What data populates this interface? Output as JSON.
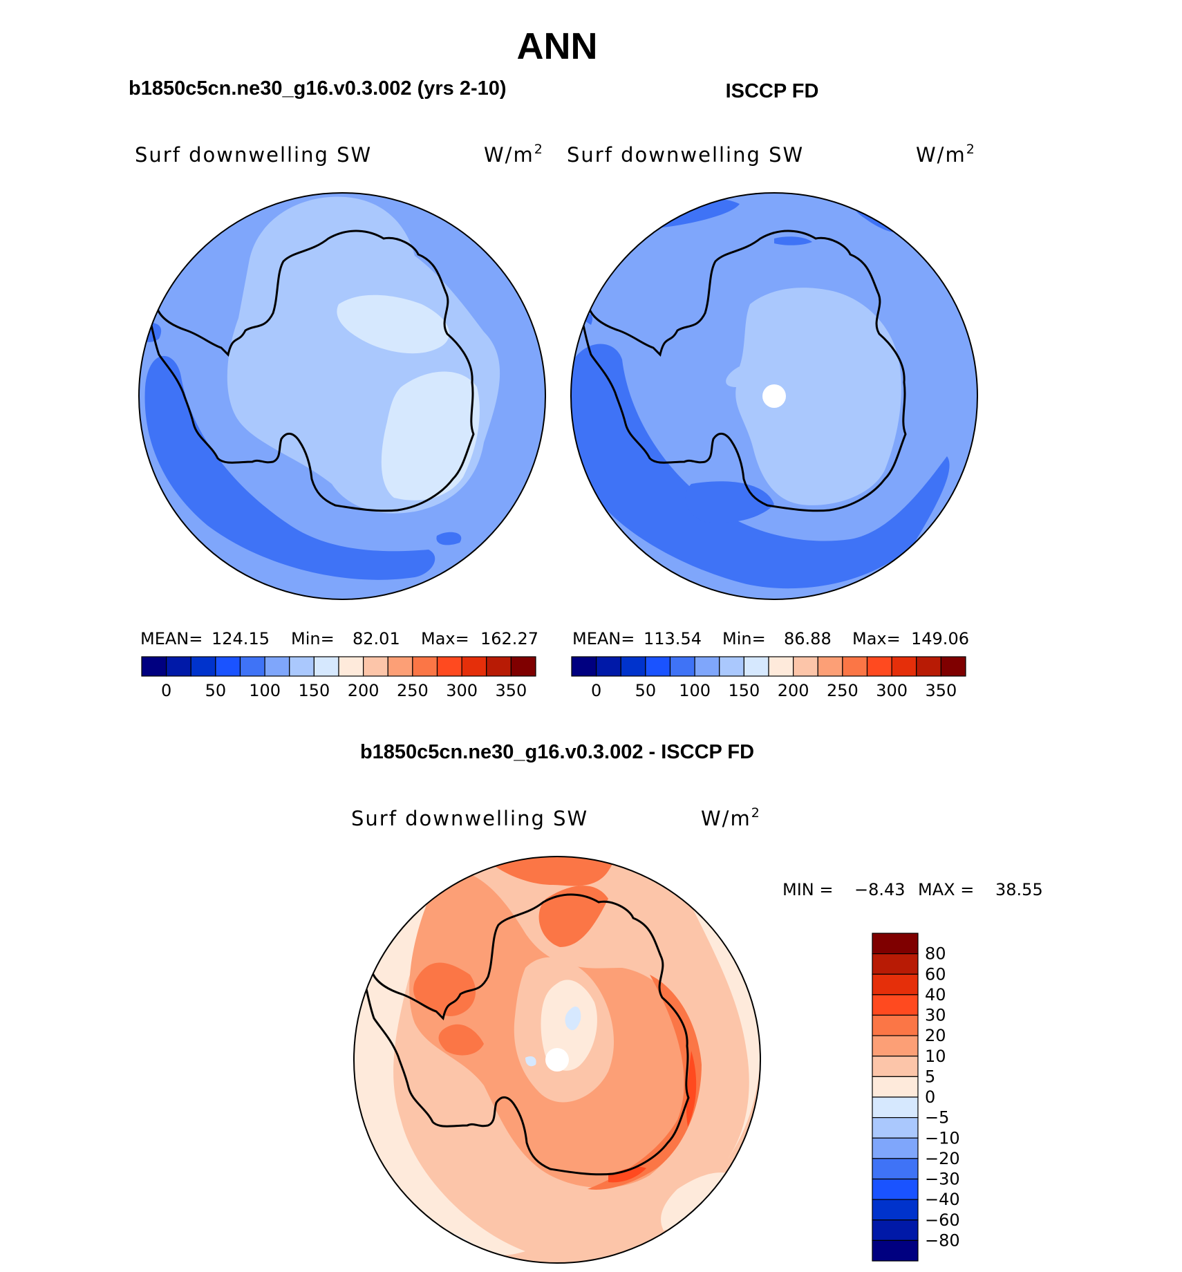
{
  "chart_data": {
    "title": "ANN",
    "panels": [
      {
        "type": "heatmap",
        "title": "b1850c5cn.ne30_g16.v0.3.002 (yrs 2-10)",
        "variable": "Surf downwelling SW",
        "units_base": "W/m",
        "units_exp": "2",
        "stats": {
          "mean_label": "MEAN=",
          "mean": "124.15",
          "min_label": "Min=",
          "min": "82.01",
          "max_label": "Max=",
          "max": "162.27"
        }
      },
      {
        "type": "heatmap",
        "title": "ISCCP FD",
        "variable": "Surf downwelling SW",
        "units_base": "W/m",
        "units_exp": "2",
        "stats": {
          "mean_label": "MEAN=",
          "mean": "113.54",
          "min_label": "Min=",
          "min": "86.88",
          "max_label": "Max=",
          "max": "149.06"
        }
      },
      {
        "type": "heatmap",
        "title": "b1850c5cn.ne30_g16.v0.3.002 - ISCCP FD",
        "variable": "Surf downwelling SW",
        "units_base": "W/m",
        "units_exp": "2",
        "min_label": "MIN =",
        "min": "−8.43",
        "max_label": "MAX =",
        "max": "38.55"
      }
    ],
    "abs_colorbar": {
      "levels": [
        0,
        25,
        50,
        75,
        100,
        125,
        150,
        175,
        200,
        225,
        250,
        275,
        300,
        325,
        350
      ],
      "tick_labels": [
        "0",
        "50",
        "100",
        "150",
        "200",
        "250",
        "300",
        "350"
      ],
      "colors": [
        "#000080",
        "#0019a8",
        "#0033cc",
        "#1a53ff",
        "#3f73f6",
        "#7fa6fb",
        "#aac8fd",
        "#d6e8fe",
        "#feeadb",
        "#fcc5a9",
        "#fc9f76",
        "#fb7646",
        "#ff4a1f",
        "#e52f0a",
        "#b81b05",
        "#7f0000"
      ]
    },
    "diff_colorbar": {
      "tick_labels": [
        "80",
        "60",
        "40",
        "30",
        "20",
        "10",
        "5",
        "0",
        "−5",
        "−10",
        "−20",
        "−30",
        "−40",
        "−60",
        "−80"
      ],
      "colors_top_to_bottom": [
        "#7f0000",
        "#b81b05",
        "#e52f0a",
        "#ff4a1f",
        "#fb7646",
        "#fc9f76",
        "#fcc5a9",
        "#feeadb",
        "#d6e8fe",
        "#aac8fd",
        "#7fa6fb",
        "#3f73f6",
        "#1a53ff",
        "#0033cc",
        "#0019a8",
        "#000080"
      ]
    }
  }
}
